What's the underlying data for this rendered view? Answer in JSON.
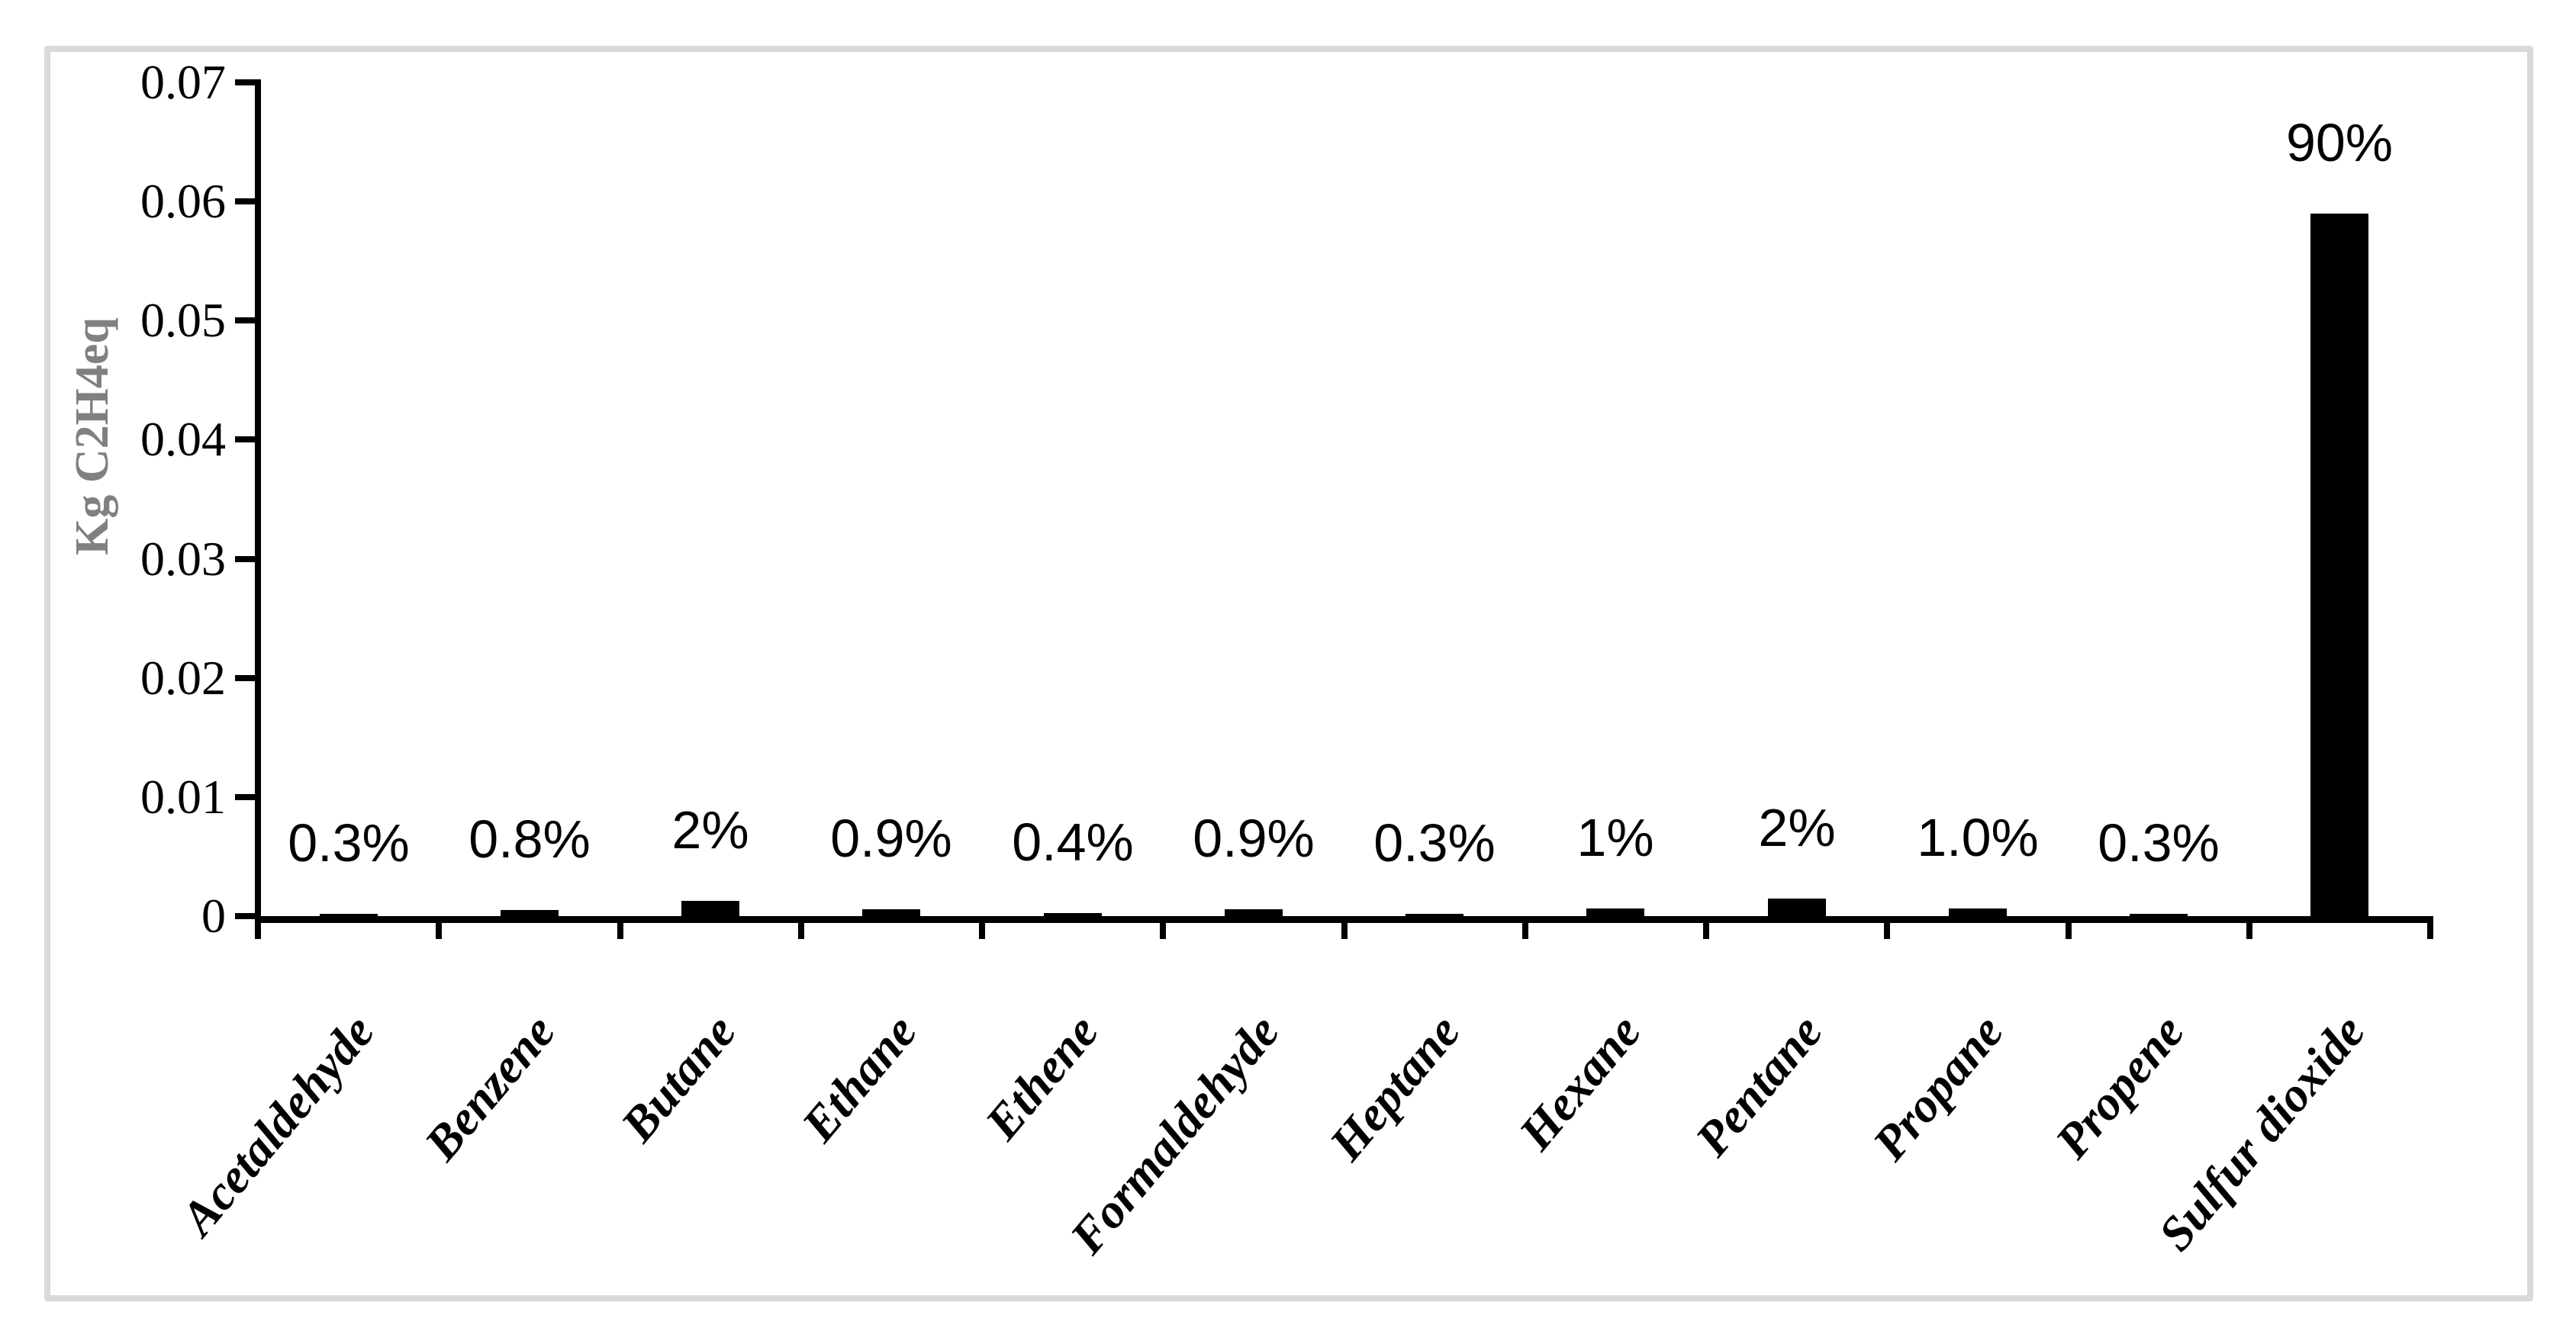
{
  "chart_data": {
    "type": "bar",
    "title": "",
    "xlabel": "",
    "ylabel": "Kg C2H4eq",
    "ylim": [
      0,
      0.07
    ],
    "ytick_labels": [
      "0",
      "0.01",
      "0.02",
      "0.03",
      "0.04",
      "0.05",
      "0.06",
      "0.07"
    ],
    "grid": "off",
    "legend": "none",
    "categories": [
      "Acetaldehyde",
      "Benzene",
      "Butane",
      "Ethane",
      "Ethene",
      "Formaldehyde",
      "Heptane",
      "Hexane",
      "Pentane",
      "Propane",
      "Propene",
      "Sulfur dioxide"
    ],
    "values": [
      0.0002,
      0.00052,
      0.0013,
      0.00059,
      0.00026,
      0.00059,
      0.0002,
      0.00066,
      0.0015,
      0.00066,
      0.0002,
      0.059
    ],
    "bar_labels": [
      "0.3%",
      "0.8%",
      "2%",
      "0.9%",
      "0.4%",
      "0.9%",
      "0.3%",
      "1%",
      "2%",
      "1.0%",
      "0.3%",
      "90%"
    ],
    "colors": {
      "bar": "#000000",
      "axis": "#000000",
      "data_label_text": "#000000",
      "ylabel_text": "#808080",
      "frame_border": "#d9d9d9",
      "background": "#ffffff"
    }
  }
}
